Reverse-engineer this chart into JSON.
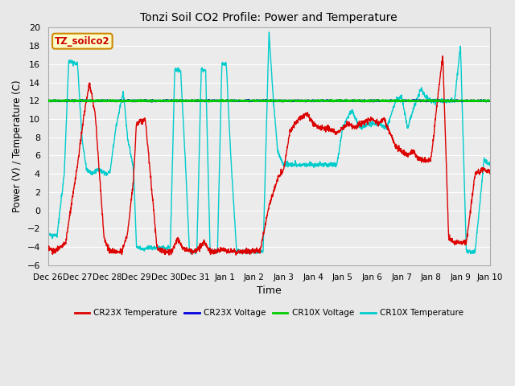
{
  "title": "Tonzi Soil CO2 Profile: Power and Temperature",
  "xlabel": "Time",
  "ylabel": "Power (V) / Temperature (C)",
  "ylim": [
    -6,
    20
  ],
  "fig_bg_color": "#e8e8e8",
  "plot_bg_color": "#ebebeb",
  "grid_color": "#ffffff",
  "legend_label": "TZ_soilco2",
  "legend_bg": "#ffffcc",
  "legend_border": "#cc8800",
  "x_tick_labels": [
    "Dec 26",
    "Dec 27",
    "Dec 28",
    "Dec 29",
    "Dec 30",
    "Dec 31",
    "Jan 1",
    "Jan 2",
    "Jan 3",
    "Jan 4",
    "Jan 5",
    "Jan 6",
    "Jan 7",
    "Jan 8",
    "Jan 9",
    "Jan 10"
  ],
  "cr23x_temp_color": "#dd0000",
  "cr23x_volt_color": "#0000dd",
  "cr10x_volt_color": "#00cc00",
  "cr10x_temp_color": "#00cccc",
  "volt_linewidth": 1.5,
  "temp_linewidth": 1.0
}
